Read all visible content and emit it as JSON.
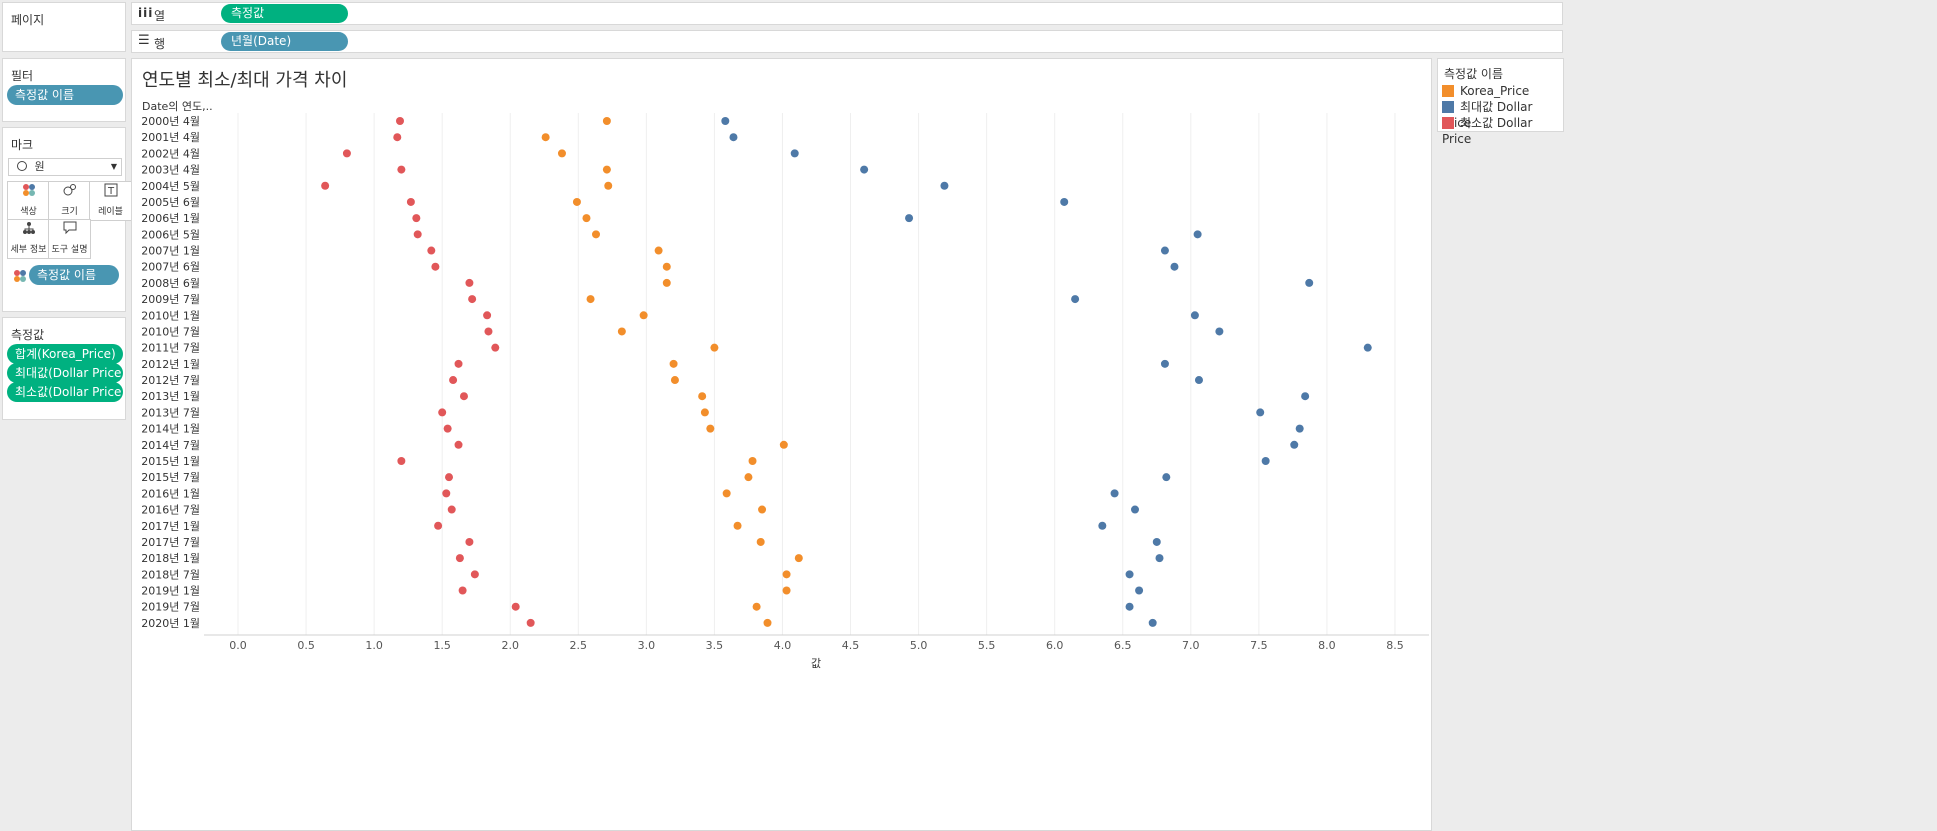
{
  "pages": {
    "title": "페이지"
  },
  "columns_shelf": {
    "icon": "columns-icon",
    "label": "열",
    "pill": "측정값"
  },
  "rows_shelf": {
    "icon": "rows-icon",
    "label": "행",
    "pill": "년월(Date)"
  },
  "filters": {
    "title": "필터",
    "pill": "측정값 이름"
  },
  "marks": {
    "title": "마크",
    "type": "원",
    "buttons": [
      {
        "label": "색상",
        "icon": "color-icon"
      },
      {
        "label": "크기",
        "icon": "size-icon"
      },
      {
        "label": "레이블",
        "icon": "label-icon"
      },
      {
        "label": "세부 정보",
        "icon": "detail-icon"
      },
      {
        "label": "도구 설명",
        "icon": "tooltip-icon"
      }
    ],
    "color_pill": "측정값 이름"
  },
  "measure_values": {
    "title": "측정값",
    "pills": [
      "합계(Korea_Price)",
      "최대값(Dollar Price)",
      "최소값(Dollar Price)"
    ]
  },
  "legend": {
    "title": "측정값 이름",
    "items": [
      {
        "name": "Korea_Price",
        "color": "#f28e2b"
      },
      {
        "name": "최대값 Dollar Price",
        "color": "#4e79a7"
      },
      {
        "name": "최소값 Dollar Price",
        "color": "#e15759"
      }
    ]
  },
  "chart_data": {
    "type": "scatter",
    "title": "연도별 최소/최대 가격 차이",
    "row_header": "Date의 연도,..",
    "xlabel": "값",
    "xlim": [
      -0.25,
      8.75
    ],
    "xticks": [
      0.0,
      0.5,
      1.0,
      1.5,
      2.0,
      2.5,
      3.0,
      3.5,
      4.0,
      4.5,
      5.0,
      5.5,
      6.0,
      6.5,
      7.0,
      7.5,
      8.0,
      8.5
    ],
    "vertical_grid": true,
    "categories": [
      "2000년 4월",
      "2001년 4월",
      "2002년 4월",
      "2003년 4월",
      "2004년 5월",
      "2005년 6월",
      "2006년 1월",
      "2006년 5월",
      "2007년 1월",
      "2007년 6월",
      "2008년 6월",
      "2009년 7월",
      "2010년 1월",
      "2010년 7월",
      "2011년 7월",
      "2012년 1월",
      "2012년 7월",
      "2013년 1월",
      "2013년 7월",
      "2014년 1월",
      "2014년 7월",
      "2015년 1월",
      "2015년 7월",
      "2016년 1월",
      "2016년 7월",
      "2017년 1월",
      "2017년 7월",
      "2018년 1월",
      "2018년 7월",
      "2019년 1월",
      "2019년 7월",
      "2020년 1월"
    ],
    "series": [
      {
        "name": "Korea_Price",
        "color": "#f28e2b",
        "values": [
          2.71,
          2.26,
          2.38,
          2.71,
          2.72,
          2.49,
          2.56,
          2.63,
          3.09,
          3.15,
          3.15,
          2.59,
          2.98,
          2.82,
          3.5,
          3.2,
          3.21,
          3.41,
          3.43,
          3.47,
          4.01,
          3.78,
          3.75,
          3.59,
          3.85,
          3.67,
          3.84,
          4.12,
          4.03,
          4.03,
          3.81,
          3.89
        ]
      },
      {
        "name": "최대값 Dollar Price",
        "color": "#4e79a7",
        "values": [
          3.58,
          3.64,
          4.09,
          4.6,
          5.19,
          6.07,
          4.93,
          7.05,
          6.81,
          6.88,
          7.87,
          6.15,
          7.03,
          7.21,
          8.3,
          6.81,
          7.06,
          7.84,
          7.51,
          7.8,
          7.76,
          7.55,
          6.82,
          6.44,
          6.59,
          6.35,
          6.75,
          6.77,
          6.55,
          6.62,
          6.55,
          6.72
        ]
      },
      {
        "name": "최소값 Dollar Price",
        "color": "#e15759",
        "values": [
          1.19,
          1.17,
          0.8,
          1.2,
          0.64,
          1.27,
          1.31,
          1.32,
          1.42,
          1.45,
          1.7,
          1.72,
          1.83,
          1.84,
          1.89,
          1.62,
          1.58,
          1.66,
          1.5,
          1.54,
          1.62,
          1.2,
          1.55,
          1.53,
          1.57,
          1.47,
          1.7,
          1.63,
          1.74,
          1.65,
          2.04,
          2.15
        ]
      }
    ]
  }
}
